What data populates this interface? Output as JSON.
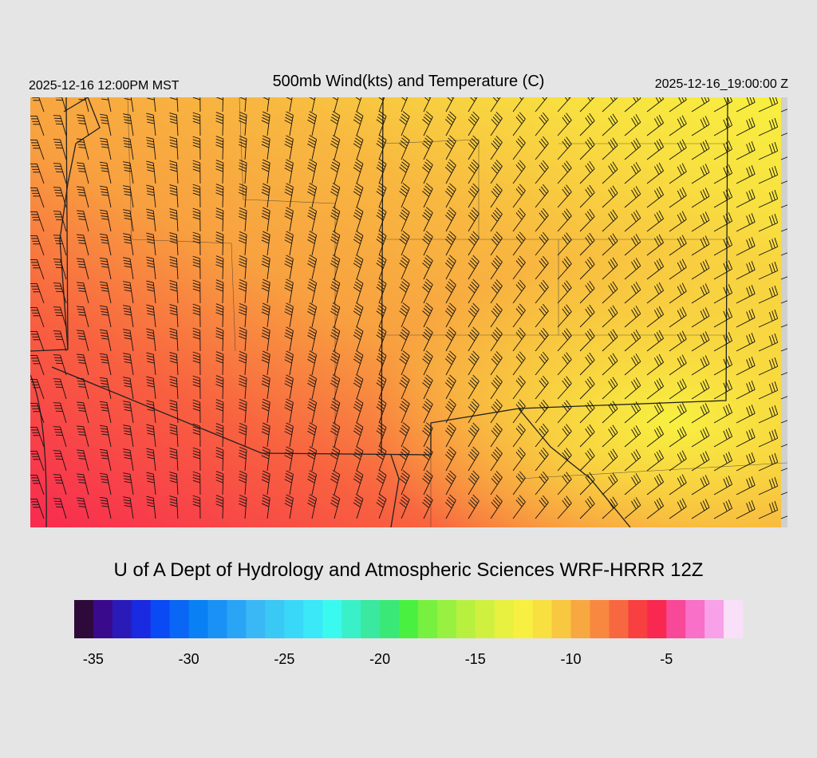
{
  "header": {
    "valid_local": "2025-12-16 12:00PM MST",
    "title": "500mb Wind(kts) and Temperature (C)",
    "valid_utc": "2025-12-16_19:00:00 Z"
  },
  "footer": {
    "credit": "U of A Dept of Hydrology and Atmospheric Sciences WRF-HRRR 12Z"
  },
  "colorbar": {
    "lim": [
      -36,
      -1
    ],
    "ticks": [
      -35,
      -30,
      -25,
      -20,
      -15,
      -10,
      -5
    ],
    "colors": [
      "#2e0a3a",
      "#3a0a8c",
      "#2a1ab8",
      "#1a2ae0",
      "#0a4af5",
      "#0a66f5",
      "#0a80f5",
      "#1a92f5",
      "#2aa4f5",
      "#3ab8f5",
      "#3ac8f5",
      "#3ad8f8",
      "#3ae8f8",
      "#3afaf0",
      "#3af0c8",
      "#3ae8a0",
      "#3ae878",
      "#4af040",
      "#78f040",
      "#98f040",
      "#b8f040",
      "#d0f040",
      "#e8f040",
      "#f8f040",
      "#f8e040",
      "#f8c840",
      "#f8a840",
      "#f88840",
      "#f86840",
      "#f84040",
      "#f82850",
      "#f84898",
      "#f870c8",
      "#f8a0e8",
      "#f8e0f8"
    ]
  }
}
